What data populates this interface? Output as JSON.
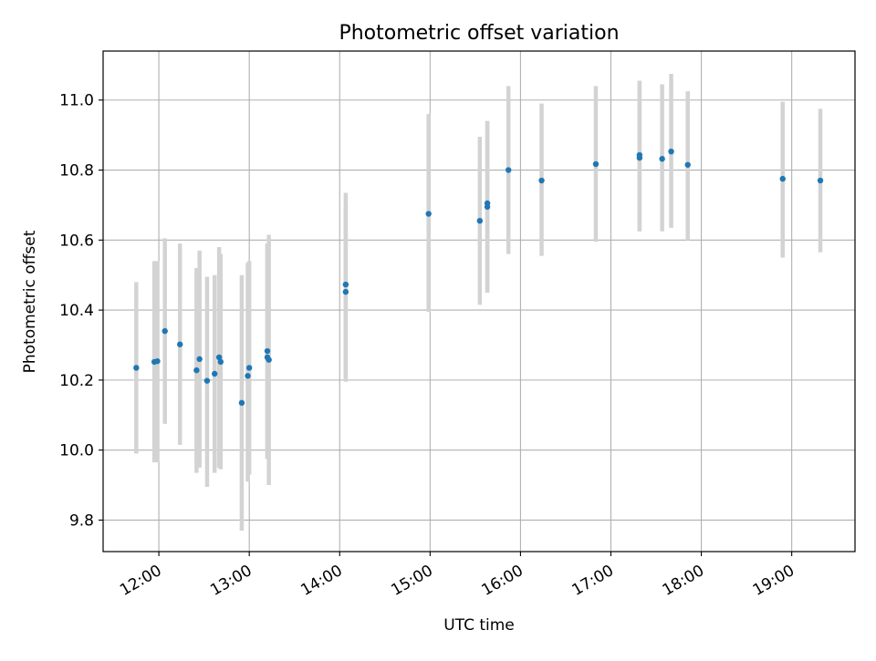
{
  "chart_data": {
    "type": "scatter",
    "title": "Photometric offset variation",
    "xlabel": "UTC time",
    "ylabel": "Photometric offset",
    "x_unit": "UTC time (hours, HH:MM)",
    "xlim": [
      "11:23",
      "19:42"
    ],
    "ylim": [
      9.71,
      11.14
    ],
    "x_ticks": [
      "12:00",
      "13:00",
      "14:00",
      "15:00",
      "16:00",
      "17:00",
      "18:00",
      "19:00"
    ],
    "y_ticks": [
      "9.8",
      "10.0",
      "10.2",
      "10.4",
      "10.6",
      "10.8",
      "11.0"
    ],
    "grid": true,
    "colors": {
      "points": "#1f77b4",
      "error_bars": "#d3d3d3",
      "grid": "#b0b0b0",
      "axes": "#000000"
    },
    "series": [
      {
        "points": [
          {
            "x": "11:45",
            "y": 10.235,
            "low": 9.99,
            "high": 10.48
          },
          {
            "x": "11:57",
            "y": 10.252,
            "low": 9.965,
            "high": 10.54
          },
          {
            "x": "11:59",
            "y": 10.254,
            "low": 9.965,
            "high": 10.54
          },
          {
            "x": "12:04",
            "y": 10.34,
            "low": 10.075,
            "high": 10.605
          },
          {
            "x": "12:14",
            "y": 10.302,
            "low": 10.015,
            "high": 10.59
          },
          {
            "x": "12:25",
            "y": 10.228,
            "low": 9.935,
            "high": 10.52
          },
          {
            "x": "12:27",
            "y": 10.26,
            "low": 9.95,
            "high": 10.57
          },
          {
            "x": "12:32",
            "y": 10.198,
            "low": 9.895,
            "high": 10.495
          },
          {
            "x": "12:37",
            "y": 10.218,
            "low": 9.935,
            "high": 10.5
          },
          {
            "x": "12:40",
            "y": 10.265,
            "low": 9.95,
            "high": 10.58
          },
          {
            "x": "12:41",
            "y": 10.252,
            "low": 9.945,
            "high": 10.56
          },
          {
            "x": "12:55",
            "y": 10.135,
            "low": 9.77,
            "high": 10.5
          },
          {
            "x": "12:59",
            "y": 10.212,
            "low": 9.91,
            "high": 10.535
          },
          {
            "x": "13:00",
            "y": 10.235,
            "low": 9.93,
            "high": 10.54
          },
          {
            "x": "13:12",
            "y": 10.283,
            "low": 9.975,
            "high": 10.59
          },
          {
            "x": "13:12",
            "y": 10.265,
            "low": 9.975,
            "high": 10.59
          },
          {
            "x": "13:13",
            "y": 10.258,
            "low": 9.9,
            "high": 10.615
          },
          {
            "x": "14:04",
            "y": 10.473,
            "low": 10.205,
            "high": 10.735
          },
          {
            "x": "14:04",
            "y": 10.452,
            "low": 10.195,
            "high": 10.705
          },
          {
            "x": "14:59",
            "y": 10.675,
            "low": 10.395,
            "high": 10.96
          },
          {
            "x": "15:33",
            "y": 10.655,
            "low": 10.415,
            "high": 10.895
          },
          {
            "x": "15:38",
            "y": 10.695,
            "low": 10.45,
            "high": 10.94
          },
          {
            "x": "15:38",
            "y": 10.705,
            "low": 10.45,
            "high": 10.94
          },
          {
            "x": "15:52",
            "y": 10.8,
            "low": 10.56,
            "high": 11.04
          },
          {
            "x": "16:14",
            "y": 10.77,
            "low": 10.555,
            "high": 10.99
          },
          {
            "x": "16:50",
            "y": 10.817,
            "low": 10.595,
            "high": 11.04
          },
          {
            "x": "17:19",
            "y": 10.835,
            "low": 10.625,
            "high": 11.055
          },
          {
            "x": "17:19",
            "y": 10.843,
            "low": 10.625,
            "high": 11.055
          },
          {
            "x": "17:34",
            "y": 10.832,
            "low": 10.625,
            "high": 11.045
          },
          {
            "x": "17:40",
            "y": 10.853,
            "low": 10.635,
            "high": 11.075
          },
          {
            "x": "17:51",
            "y": 10.815,
            "low": 10.6,
            "high": 11.025
          },
          {
            "x": "18:54",
            "y": 10.775,
            "low": 10.55,
            "high": 10.995
          },
          {
            "x": "19:19",
            "y": 10.77,
            "low": 10.565,
            "high": 10.975
          }
        ]
      }
    ]
  }
}
